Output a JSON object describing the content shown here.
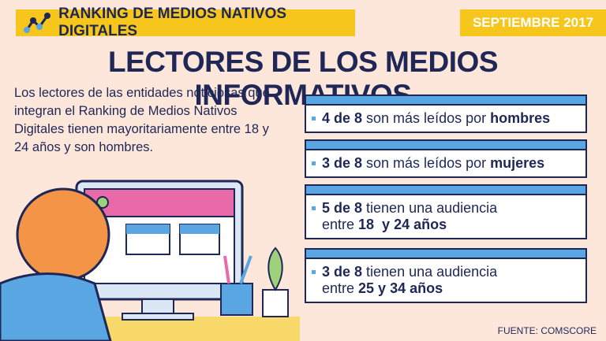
{
  "header": {
    "title": "RANKING DE MEDIOS NATIVOS DIGITALES",
    "date": "SEPTIEMBRE 2017"
  },
  "heading": "LECTORES DE LOS MEDIOS INFORMATIVOS",
  "intro": "Los lectores de las entidades noticiosas que integran el Ranking de Medios Nativos Digitales tienen mayoritariamente entre 18 y 24 años y son hombres.",
  "facts": [
    {
      "lines": [
        [
          {
            "text": "4 de 8",
            "bold": true
          },
          {
            "text": " son más leídos por ",
            "bold": false
          },
          {
            "text": "hombres",
            "bold": true
          }
        ]
      ]
    },
    {
      "lines": [
        [
          {
            "text": "3 de 8",
            "bold": true
          },
          {
            "text": " son más leídos por ",
            "bold": false
          },
          {
            "text": "mujeres",
            "bold": true
          }
        ]
      ]
    },
    {
      "lines": [
        [
          {
            "text": "5 de 8",
            "bold": true
          },
          {
            "text": " tienen una audiencia",
            "bold": false
          }
        ],
        [
          {
            "text": "entre ",
            "bold": false
          },
          {
            "text": "18  y 24 años",
            "bold": true
          }
        ]
      ]
    },
    {
      "lines": [
        [
          {
            "text": "3 de 8",
            "bold": true
          },
          {
            "text": " tienen una audiencia",
            "bold": false
          }
        ],
        [
          {
            "text": "entre ",
            "bold": false
          },
          {
            "text": "25 y 34 años",
            "bold": true
          }
        ]
      ]
    }
  ],
  "source": "FUENTE: COMSCORE"
}
